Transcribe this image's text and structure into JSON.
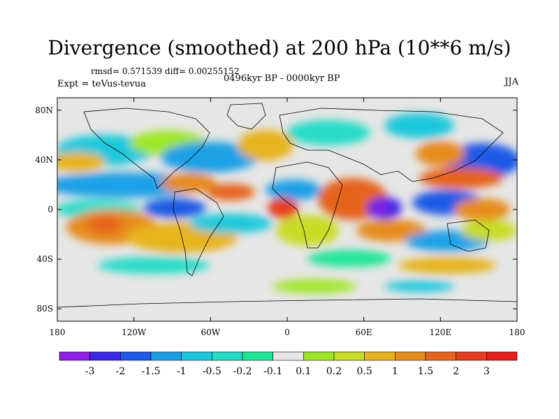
{
  "title": "Divergence (smoothed) at 200 hPa (10**6 m/s)",
  "stats": "rmsd= 0.571539 diff= 0.00255152",
  "experiment": "Expt = teVus-tevua",
  "period": "0496kyr BP - 0000kyr BP",
  "season": "JJA",
  "map": {
    "projection": "cylindrical equidistant",
    "lon_ticks": [
      "180",
      "120W",
      "60W",
      "0",
      "60E",
      "120E",
      "180"
    ],
    "lat_ticks": [
      "80N",
      "40N",
      "0",
      "40S",
      "80S"
    ],
    "lat_tick_values": [
      80,
      40,
      0,
      -40,
      -80
    ],
    "lon_range": [
      -180,
      180
    ],
    "lat_range": [
      -90,
      90
    ],
    "background_color": "#e6e6e6"
  },
  "colorbar": {
    "labels": [
      "-3",
      "-2",
      "-1.5",
      "-1",
      "-0.5",
      "-0.2",
      "-0.1",
      "0.1",
      "0.2",
      "0.5",
      "1",
      "1.5",
      "2",
      "3"
    ],
    "colors": [
      "#8c1ee6",
      "#3c28e6",
      "#1e5ae6",
      "#1ea0e6",
      "#1ec8dc",
      "#28dcc8",
      "#1ee696",
      "#e6e6e6",
      "#a0e628",
      "#c8dc28",
      "#e6b41e",
      "#e68c1e",
      "#e6641e",
      "#e63c1e",
      "#e61e1e"
    ]
  }
}
